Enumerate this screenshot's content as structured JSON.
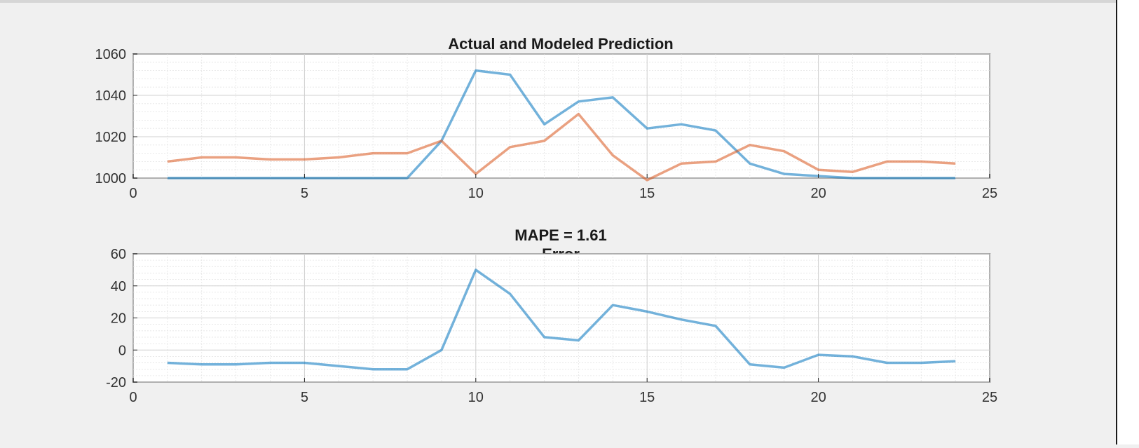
{
  "figure_background": "#f0f0f0",
  "chart_data": [
    {
      "type": "line",
      "title": "Actual and Modeled Prediction",
      "xlabel": "",
      "ylabel": "",
      "xlim": [
        0,
        25
      ],
      "ylim": [
        1000,
        1060
      ],
      "xticks": [
        0,
        5,
        10,
        15,
        20,
        25
      ],
      "yticks": [
        1000,
        1020,
        1040,
        1060
      ],
      "xtick_labels": [
        "0",
        "5",
        "10",
        "15",
        "20",
        "25"
      ],
      "ytick_labels": [
        "1000",
        "1020",
        "1040",
        "1060"
      ],
      "grid": true,
      "minor_grid": true,
      "legend": "none",
      "x": [
        1,
        2,
        3,
        4,
        5,
        6,
        7,
        8,
        9,
        10,
        11,
        12,
        13,
        14,
        15,
        16,
        17,
        18,
        19,
        20,
        21,
        22,
        23,
        24
      ],
      "series": [
        {
          "color": "#0072bd",
          "values": [
            1000,
            1000,
            1000,
            1000,
            1000,
            1000,
            1000,
            1000,
            1018,
            1052,
            1050,
            1026,
            1037,
            1039,
            1024,
            1026,
            1023,
            1007,
            1002,
            1001,
            1000,
            1000,
            1000,
            1000
          ]
        },
        {
          "color": "#d95319",
          "values": [
            1008,
            1010,
            1010,
            1009,
            1009,
            1010,
            1012,
            1012,
            1018,
            1002,
            1015,
            1018,
            1031,
            1011,
            999,
            1007,
            1008,
            1016,
            1013,
            1004,
            1003,
            1008,
            1008,
            1007
          ]
        }
      ]
    },
    {
      "type": "line",
      "title": "MAPE = 1.61",
      "subtitle": "Error",
      "xlabel": "",
      "ylabel": "",
      "xlim": [
        0,
        25
      ],
      "ylim": [
        -20,
        60
      ],
      "xticks": [
        0,
        5,
        10,
        15,
        20,
        25
      ],
      "yticks": [
        -20,
        0,
        20,
        40,
        60
      ],
      "xtick_labels": [
        "0",
        "5",
        "10",
        "15",
        "20",
        "25"
      ],
      "ytick_labels": [
        "-20",
        "0",
        "20",
        "40",
        "60"
      ],
      "grid": true,
      "minor_grid": true,
      "legend": "none",
      "x": [
        1,
        2,
        3,
        4,
        5,
        6,
        7,
        8,
        9,
        10,
        11,
        12,
        13,
        14,
        15,
        16,
        17,
        18,
        19,
        20,
        21,
        22,
        23,
        24
      ],
      "series": [
        {
          "color": "#0072bd",
          "values": [
            -8,
            -9,
            -9,
            -8,
            -8,
            -10,
            -12,
            -12,
            0,
            50,
            35,
            8,
            6,
            28,
            24,
            19,
            15,
            -9,
            -11,
            -3,
            -4,
            -8,
            -8,
            -7
          ]
        }
      ]
    }
  ]
}
